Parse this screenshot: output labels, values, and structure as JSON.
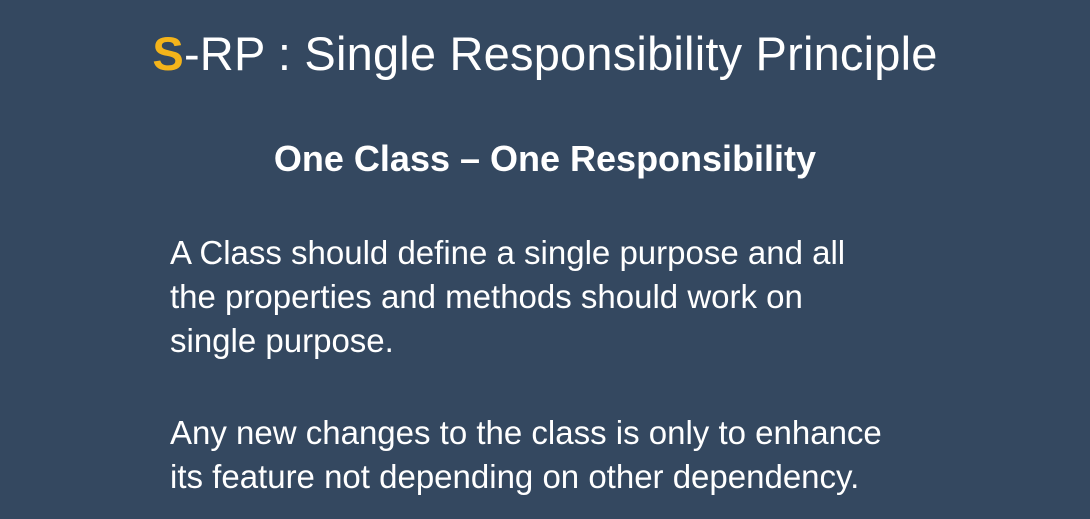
{
  "slide": {
    "title": {
      "accent_letter": "S",
      "rest": "-RP : Single Responsibility Principle"
    },
    "subtitle": "One Class – One Responsibility",
    "paragraph_1": {
      "lines": [
        "A Class should define a single purpose and all",
        "the properties and methods should work on",
        "single purpose."
      ]
    },
    "paragraph_2": {
      "lines": [
        "Any new changes to the class is only to enhance",
        "its feature not depending on other dependency."
      ]
    }
  },
  "colors": {
    "background": "#344860",
    "text": "#ffffff",
    "accent": "#f4b41a"
  }
}
